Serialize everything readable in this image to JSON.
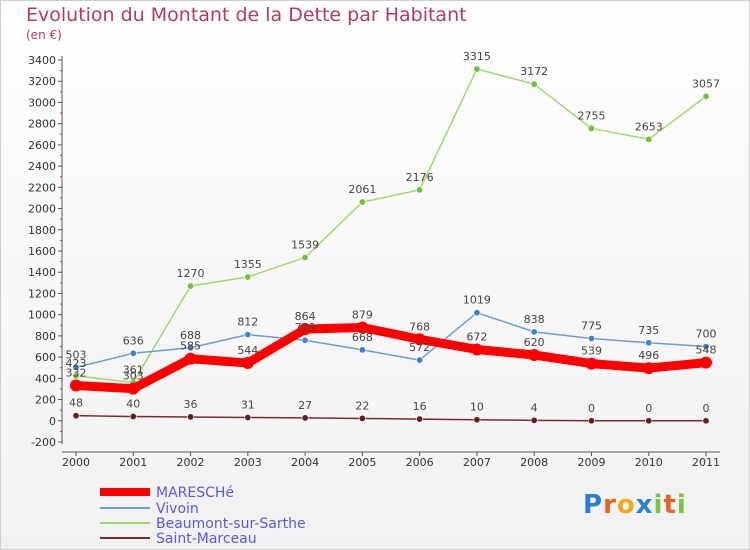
{
  "title": "Evolution du Montant de la Dette par Habitant",
  "subtitle": "(en €)",
  "logo": {
    "text": "Proxiti",
    "letters": [
      "P",
      "r",
      "o",
      "x",
      "i",
      "t",
      "i"
    ],
    "colors": [
      "#2a7fd4",
      "#e8632b",
      "#f2a81d",
      "#2a7fd4",
      "#7cc242",
      "#e8632b",
      "#7cc242"
    ]
  },
  "chart_data": {
    "type": "line",
    "title": "Evolution du Montant de la Dette par Habitant",
    "subtitle": "(en €)",
    "xlabel": "",
    "ylabel": "",
    "x": [
      "2000",
      "2001",
      "2002",
      "2003",
      "2004",
      "2005",
      "2006",
      "2007",
      "2008",
      "2009",
      "2010",
      "2011"
    ],
    "ylim": [
      -200,
      3400
    ],
    "yticks": [
      -200,
      0,
      200,
      400,
      600,
      800,
      1000,
      1200,
      1400,
      1600,
      1800,
      2000,
      2200,
      2400,
      2600,
      2800,
      3000,
      3200,
      3400
    ],
    "grid": false,
    "legend_position": "bottom-left",
    "series": [
      {
        "name": "MARESCHé",
        "color": "#ff0000",
        "emphasis": "thick",
        "values": [
          332,
          303,
          585,
          544,
          864,
          879,
          768,
          672,
          620,
          539,
          496,
          548
        ],
        "labels": [
          "332",
          "303",
          "585",
          "544",
          "864",
          "879",
          "768",
          "672",
          "620",
          "539",
          "496",
          "548"
        ]
      },
      {
        "name": "Vivoin",
        "color": "#6a9ed1",
        "marker_color": "#3a84cc",
        "values": [
          503,
          636,
          688,
          812,
          759,
          668,
          572,
          1019,
          838,
          775,
          735,
          700
        ],
        "labels": [
          "503",
          "636",
          "688",
          "812",
          "759",
          "668",
          "572",
          "1019",
          "838",
          "775",
          "735",
          "700"
        ]
      },
      {
        "name": "Beaumont-sur-Sarthe",
        "color": "#9fd86a",
        "marker_color": "#6cc23a",
        "values": [
          423,
          361,
          1270,
          1355,
          1539,
          2061,
          2176,
          3315,
          3172,
          2755,
          2653,
          3057
        ],
        "labels": [
          "423",
          "361",
          "1270",
          "1355",
          "1539",
          "2061",
          "2176",
          "3315",
          "3172",
          "2755",
          "2653",
          "3057"
        ]
      },
      {
        "name": "Saint-Marceau",
        "color": "#7a2a2a",
        "marker_color": "#6a1c1c",
        "values": [
          48,
          40,
          36,
          31,
          27,
          22,
          16,
          10,
          4,
          0,
          0,
          0
        ],
        "labels": [
          "48",
          "40",
          "36",
          "31",
          "27",
          "22",
          "16",
          "10",
          "4",
          "0",
          "0",
          "0"
        ]
      }
    ]
  }
}
